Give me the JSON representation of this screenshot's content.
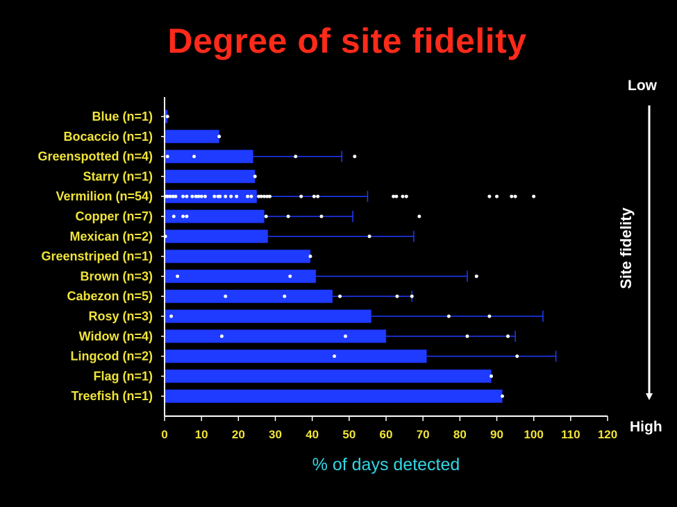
{
  "chart_data": {
    "type": "bar",
    "orientation": "horizontal",
    "title": "Degree of site fidelity",
    "xlabel": "% of days detected",
    "xlim": [
      0,
      120
    ],
    "xticks": [
      0,
      10,
      20,
      30,
      40,
      50,
      60,
      70,
      80,
      90,
      100,
      110,
      120
    ],
    "grid": false,
    "colors": {
      "background": "#000000",
      "bar": "#1f3bff",
      "points": "#ffffff",
      "title": "#ff2a1a",
      "category_text": "#f0e43a",
      "tick_text": "#f0e43a",
      "xlabel_text": "#33d6e6",
      "side_text": "#ffffff"
    },
    "categories": [
      "Blue (n=1)",
      "Bocaccio (n=1)",
      "Greenspotted (n=4)",
      "Starry (n=1)",
      "Vermilion (n=54)",
      "Copper (n=7)",
      "Mexican (n=2)",
      "Greenstriped (n=1)",
      "Brown (n=3)",
      "Cabezon (n=5)",
      "Rosy (n=3)",
      "Widow (n=4)",
      "Lingcod (n=2)",
      "Flag (n=1)",
      "Treefish (n=1)"
    ],
    "series": [
      {
        "values": [
          0.8,
          14.8,
          24,
          24.5,
          25,
          27,
          28,
          39.5,
          41,
          45.5,
          56,
          60,
          71,
          88.5,
          91.5
        ]
      }
    ],
    "error_bar_upper": [
      null,
      null,
      48,
      null,
      55,
      51,
      67.5,
      null,
      82,
      67,
      102.5,
      95,
      106,
      null,
      null
    ],
    "individual_points": [
      [
        0.8
      ],
      [
        14.8
      ],
      [
        0.8,
        8,
        35.5,
        51.5
      ],
      [
        24.5
      ],
      [
        0.2,
        0.8,
        1.5,
        2.3,
        3,
        5,
        6,
        7.5,
        8.5,
        9.2,
        10,
        11,
        13.5,
        14.5,
        15,
        16.5,
        18,
        19.5,
        22.5,
        23.5,
        25.5,
        26.2,
        27,
        27.8,
        28.5,
        37,
        40.5,
        41.5,
        62,
        62.8,
        64.5,
        65.5,
        88,
        90,
        94,
        95,
        100
      ],
      [
        2.5,
        5,
        6,
        27.5,
        33.5,
        42.5,
        69
      ],
      [
        0.2,
        55.5
      ],
      [
        39.5
      ],
      [
        3.5,
        34,
        84.5
      ],
      [
        16.5,
        32.5,
        47.5,
        63,
        67
      ],
      [
        1.8,
        77,
        88
      ],
      [
        15.5,
        49,
        82,
        93
      ],
      [
        46,
        95.5
      ],
      [
        88.5
      ],
      [
        91.5
      ]
    ]
  },
  "side_axis": {
    "label": "Site fidelity",
    "top_label": "Low",
    "bottom_label": "High"
  }
}
